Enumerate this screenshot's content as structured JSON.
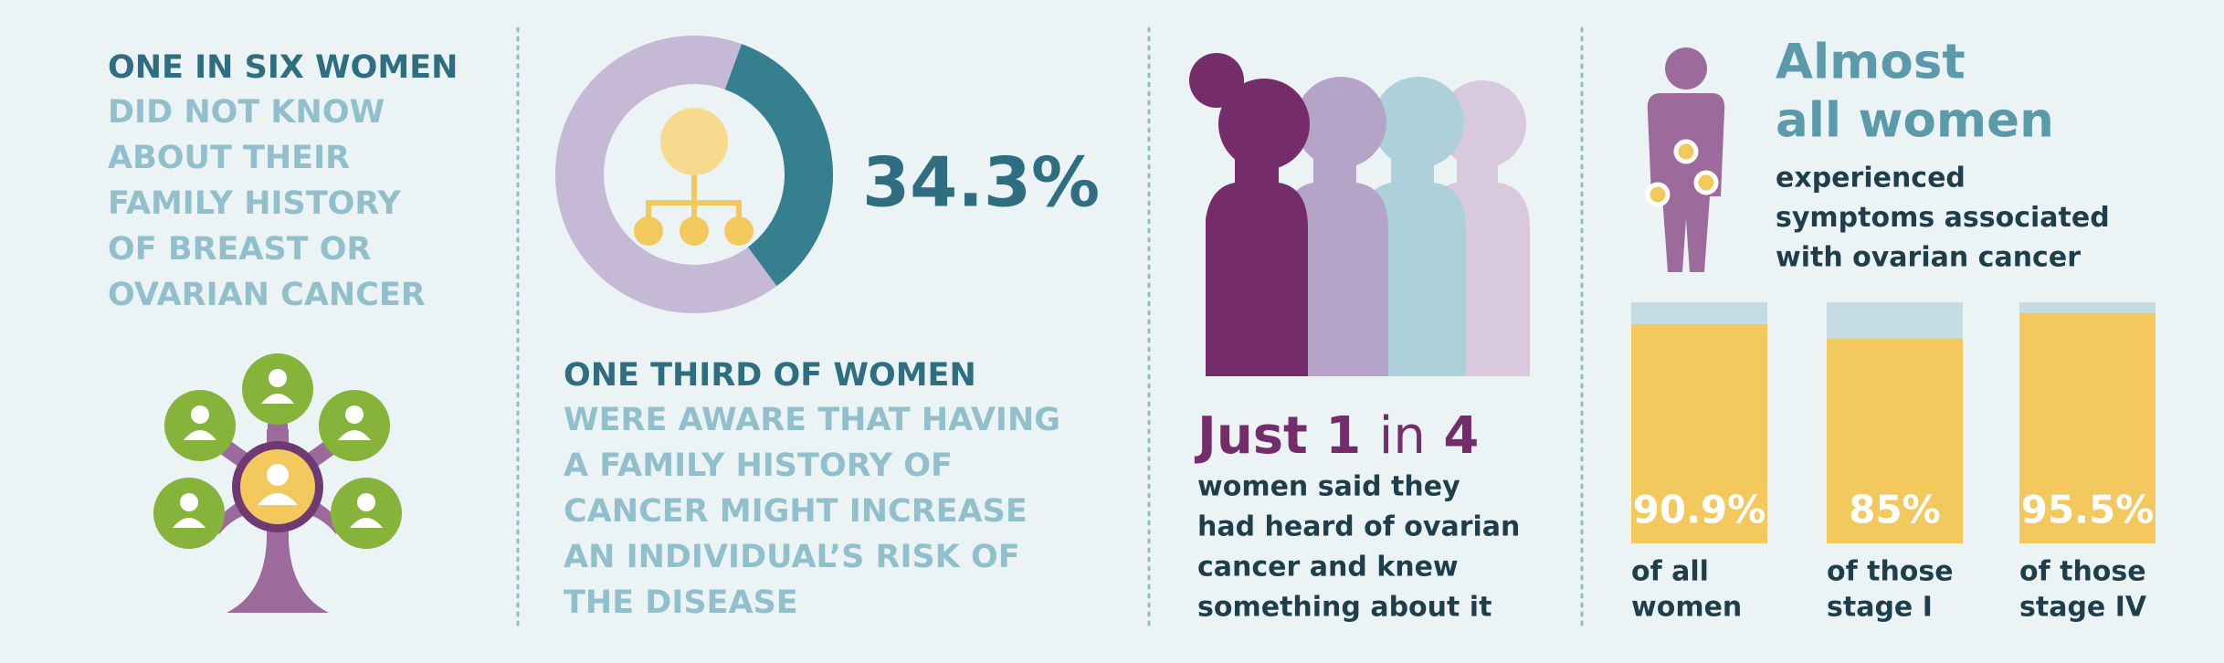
{
  "panel1": {
    "heading": "ONE IN SIX WOMEN",
    "lines": [
      "DID NOT KNOW",
      "ABOUT THEIR",
      "FAMILY HISTORY",
      "OF BREAST OR",
      "OVARIAN CANCER"
    ]
  },
  "panel2": {
    "donut": {
      "value": 34.3,
      "value_label": "34.3%",
      "range": [
        0,
        100
      ],
      "color": "#367f8f",
      "rest_color": "#c5b9d6"
    },
    "heading": "ONE THIRD OF WOMEN",
    "lines": [
      "WERE AWARE THAT HAVING",
      "A FAMILY HISTORY OF",
      "CANCER MIGHT INCREASE",
      "AN INDIVIDUAL’S RISK OF",
      "THE DISEASE"
    ]
  },
  "panel3": {
    "headline": [
      "Just 1",
      "in",
      "4"
    ],
    "lines": [
      "women said they",
      "had heard of ovarian",
      "cancer and knew",
      "something about it"
    ]
  },
  "panel4": {
    "headline": [
      "Almost",
      "all women"
    ],
    "lines": [
      "experienced",
      "symptoms associated",
      "with ovarian cancer"
    ],
    "bars": {
      "values": [
        90.9,
        85,
        95.5
      ],
      "value_labels": [
        "90.9%",
        "85%",
        "95.5%"
      ],
      "captions": [
        [
          "of all",
          "women"
        ],
        [
          "of those",
          "stage I"
        ],
        [
          "of those",
          "stage IV"
        ]
      ],
      "ylim": [
        0,
        100
      ],
      "color": "#f3c95e",
      "track_color": "#c5dce3"
    }
  }
}
